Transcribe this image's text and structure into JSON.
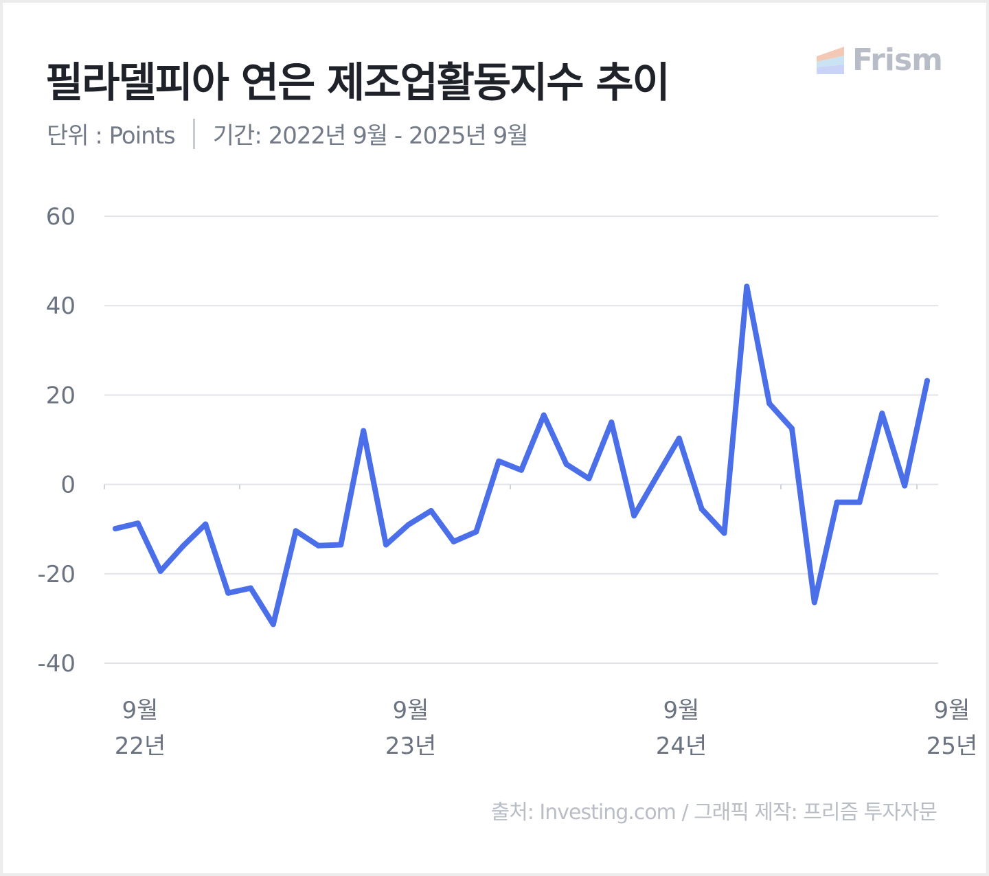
{
  "header": {
    "title": "필라델피아 연은 제조업활동지수 추이",
    "brand": "Frism",
    "unit_text": "단위 : Points",
    "period_text": "기간: 2022년 9월 - 2025년 9월"
  },
  "footer": {
    "source": "출처: Investing.com / 그래픽 제작: 프리즘 투자자문"
  },
  "colors": {
    "line": "#4a6fe8",
    "grid": "#e1e3e8",
    "tick_text": "#6b7280",
    "logo_bands": [
      "#f3c9b6",
      "#c9e3f2",
      "#c8d3f7"
    ]
  },
  "chart_data": {
    "type": "line",
    "title": "",
    "xlabel": "",
    "ylabel": "",
    "ylim": [
      -40,
      60
    ],
    "yticks": [
      60,
      40,
      20,
      0,
      -20,
      -40
    ],
    "ytick_labels": [
      "60",
      "40",
      "20",
      "0",
      "-20",
      "-40"
    ],
    "grid": true,
    "x": [
      "2022-09",
      "2022-10",
      "2022-11",
      "2022-12",
      "2023-01",
      "2023-02",
      "2023-03",
      "2023-04",
      "2023-05",
      "2023-06",
      "2023-07",
      "2023-08",
      "2023-09",
      "2023-10",
      "2023-11",
      "2023-12",
      "2024-01",
      "2024-02",
      "2024-03",
      "2024-04",
      "2024-05",
      "2024-06",
      "2024-07",
      "2024-08",
      "2024-09",
      "2024-10",
      "2024-11",
      "2024-12",
      "2025-01",
      "2025-02",
      "2025-03",
      "2025-04",
      "2025-05",
      "2025-06",
      "2025-07",
      "2025-08",
      "2025-09"
    ],
    "x_tick_labels": [
      {
        "x": "2022-09",
        "line1": "9월",
        "line2": "22년"
      },
      {
        "x": "2023-09",
        "line1": "9월",
        "line2": "23년"
      },
      {
        "x": "2024-09",
        "line1": "9월",
        "line2": "24년"
      },
      {
        "x": "2025-09",
        "line1": "9월",
        "line2": "25년"
      }
    ],
    "series": [
      {
        "values": [
          -9.9,
          -8.7,
          -19.4,
          -13.8,
          -8.9,
          -24.3,
          -23.2,
          -31.3,
          -10.4,
          -13.7,
          -13.5,
          12.0,
          -13.5,
          -9.0,
          -5.9,
          -12.8,
          -10.6,
          5.2,
          3.2,
          15.5,
          4.5,
          1.3,
          13.9,
          -7.0,
          1.7,
          10.3,
          -5.5,
          -10.9,
          44.3,
          18.1,
          12.5,
          -26.4,
          -4.0,
          -4.0,
          15.9,
          -0.3,
          23.2
        ]
      }
    ]
  }
}
